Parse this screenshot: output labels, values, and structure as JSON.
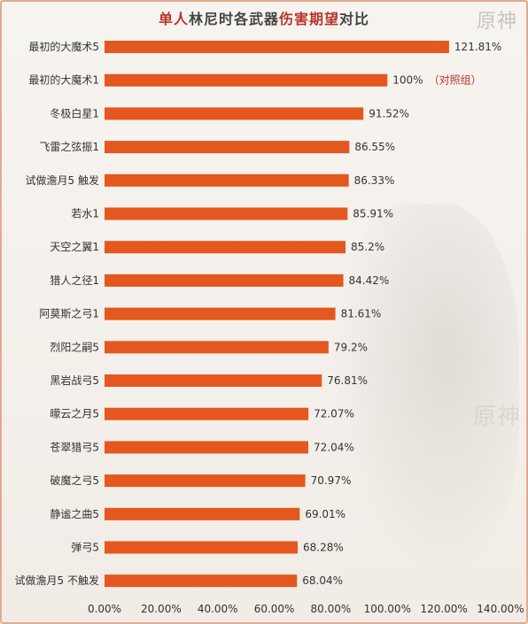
{
  "title": {
    "part1": "单人",
    "part2": "林尼时各武器",
    "part3": "伤害期望",
    "part4": "对比"
  },
  "logo_text": "原神",
  "colors": {
    "bar": "#e4571f",
    "title_accent": "#b8342a"
  },
  "chart_data": {
    "type": "bar",
    "orientation": "horizontal",
    "title": "单人林尼时各武器伤害期望对比",
    "categories": [
      "最初的大魔术5",
      "最初的大魔术1",
      "冬极白星1",
      "飞雷之弦振1",
      "试做澹月5 触发",
      "若水1",
      "天空之翼1",
      "猎人之径1",
      "阿莫斯之弓1",
      "烈阳之嗣5",
      "黑岩战弓5",
      "曚云之月5",
      "苍翠猎弓5",
      "破魔之弓5",
      "静谧之曲5",
      "弹弓5",
      "试做澹月5 不触发"
    ],
    "values": [
      121.81,
      100,
      91.52,
      86.55,
      86.33,
      85.91,
      85.2,
      84.42,
      81.61,
      79.2,
      76.81,
      72.07,
      72.04,
      70.97,
      69.01,
      68.28,
      68.04
    ],
    "value_labels": [
      "121.81%",
      "100%",
      "91.52%",
      "86.55%",
      "86.33%",
      "85.91%",
      "85.2%",
      "84.42%",
      "81.61%",
      "79.2%",
      "76.81%",
      "72.07%",
      "72.04%",
      "70.97%",
      "69.01%",
      "68.28%",
      "68.04%"
    ],
    "annotation": {
      "category_index": 1,
      "text": "（对照组）"
    },
    "xlim": [
      0,
      140
    ],
    "x_ticks": [
      "0.00%",
      "20.00%",
      "40.00%",
      "60.00%",
      "80.00%",
      "100.00%",
      "120.00%",
      "140.00%"
    ],
    "grid": false,
    "legend": "none"
  }
}
